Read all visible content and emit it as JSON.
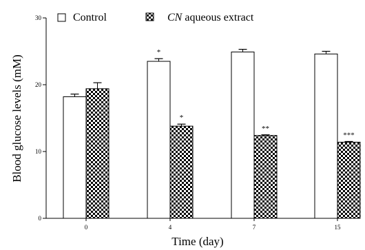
{
  "chart_data": {
    "type": "bar",
    "xlabel": "Time (day)",
    "ylabel": "Blood glucose levels (mM)",
    "ylim": [
      0,
      30
    ],
    "yticks": [
      0,
      10,
      20,
      30
    ],
    "categories": [
      "0",
      "4",
      "7",
      "15"
    ],
    "series": [
      {
        "name": "Control",
        "color": "#ffffff",
        "pattern": "none",
        "values": [
          18.2,
          23.5,
          24.9,
          24.6
        ],
        "errors": [
          0.4,
          0.4,
          0.4,
          0.4
        ],
        "annotations": [
          "",
          "*",
          "",
          ""
        ]
      },
      {
        "name": "CN aqueous extract",
        "color": "#000000",
        "pattern": "checkerboard",
        "values": [
          19.4,
          13.8,
          12.4,
          11.4
        ],
        "errors": [
          0.9,
          0.3,
          0.1,
          0.1
        ],
        "annotations": [
          "",
          "*",
          "**",
          "***"
        ]
      }
    ],
    "legend": {
      "placement": "top",
      "items": [
        {
          "italic_prefix": "",
          "text": "Control"
        },
        {
          "italic_prefix": "CN",
          "text": " aqueous extract"
        }
      ]
    }
  }
}
